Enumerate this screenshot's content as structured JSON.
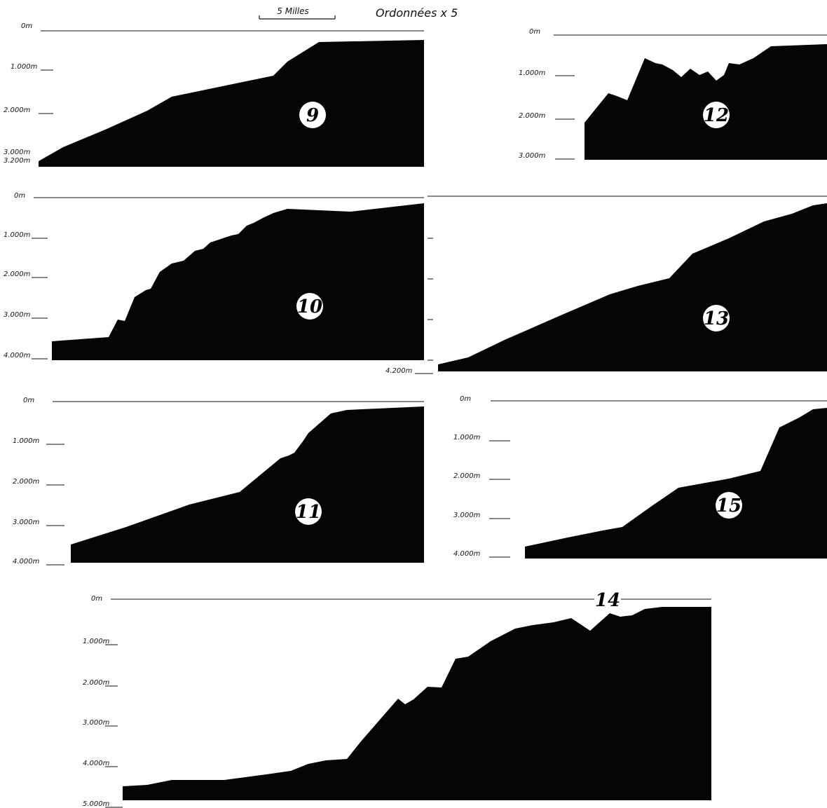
{
  "header": {
    "scale_label": "5 Milles",
    "ordinate_label": "Ordonnées x 5"
  },
  "profiles": [
    {
      "id": "9",
      "depth_labels": [
        "0m",
        "1.000m",
        "2.000m",
        "3.000m",
        "3.200m"
      ]
    },
    {
      "id": "12",
      "depth_labels": [
        "0m",
        "1.000m",
        "2.000m",
        "3.000m"
      ]
    },
    {
      "id": "10",
      "depth_labels": [
        "0m",
        "1.000m",
        "2.000m",
        "3.000m",
        "4.000m"
      ]
    },
    {
      "id": "13",
      "depth_labels": [
        "4.200m"
      ]
    },
    {
      "id": "11",
      "depth_labels": [
        "0m",
        "1.000m",
        "2.000m",
        "3.000m",
        "4.000m"
      ]
    },
    {
      "id": "15",
      "depth_labels": [
        "0m",
        "1.000m",
        "2.000m",
        "3.000m",
        "4.000m"
      ]
    },
    {
      "id": "14",
      "depth_labels": [
        "0m",
        "1.000m",
        "2.000m",
        "3.000m",
        "4.000m",
        "5.000m"
      ]
    }
  ]
}
